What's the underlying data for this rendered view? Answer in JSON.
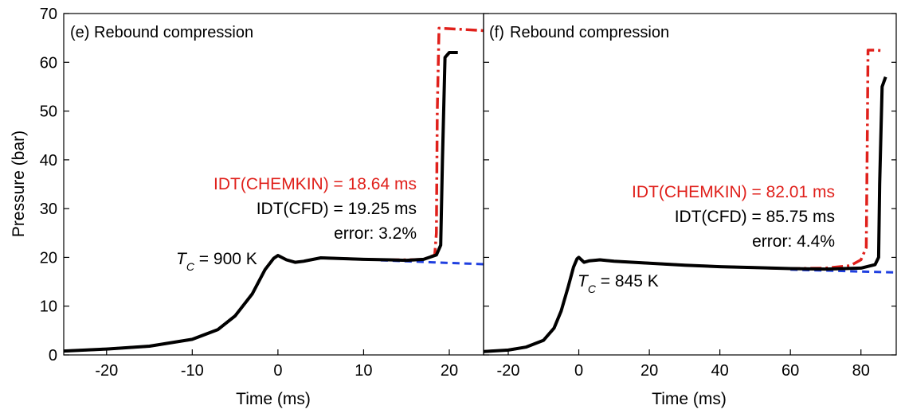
{
  "chart_data": [
    {
      "type": "line",
      "panel_label": "(e)",
      "title": "Rebound compression",
      "xlabel": "Time (ms)",
      "ylabel": "Pressure (bar)",
      "xlim": [
        -25,
        24
      ],
      "ylim": [
        0,
        70
      ],
      "xticks": [
        -20,
        -10,
        0,
        10,
        20
      ],
      "yticks": [
        0,
        10,
        20,
        30,
        40,
        50,
        60,
        70
      ],
      "grid": false,
      "series": [
        {
          "style": "solid",
          "color": "#000000",
          "x": [
            -25,
            -20,
            -15,
            -10,
            -7,
            -5,
            -3,
            -1.5,
            -0.5,
            0,
            1,
            2,
            3,
            5,
            7,
            10,
            13,
            15,
            17,
            18.5,
            19,
            19.2,
            19.5,
            20,
            21
          ],
          "y": [
            0.8,
            1.2,
            1.8,
            3.2,
            5.2,
            8,
            12.5,
            17.5,
            19.8,
            20.4,
            19.5,
            19,
            19.2,
            19.9,
            19.8,
            19.6,
            19.5,
            19.4,
            19.6,
            20.5,
            22.5,
            40,
            61,
            62,
            62
          ]
        },
        {
          "style": "dash-dot",
          "color": "#e0201b",
          "x": [
            -25,
            -20,
            -15,
            -10,
            -7,
            -5,
            -3,
            -1.5,
            -0.5,
            0,
            1,
            2,
            3,
            5,
            7,
            10,
            13,
            15,
            17,
            18.3,
            18.5,
            18.6,
            18.8,
            21,
            24
          ],
          "y": [
            0.8,
            1.2,
            1.8,
            3.2,
            5.2,
            8,
            12.5,
            17.5,
            19.8,
            20.4,
            19.5,
            19,
            19.2,
            19.9,
            19.8,
            19.6,
            19.5,
            19.5,
            19.6,
            20.5,
            25,
            50,
            67,
            66.8,
            66.5
          ]
        },
        {
          "style": "dashed",
          "color": "#1f3fe0",
          "x": [
            12,
            15,
            18,
            21,
            24
          ],
          "y": [
            19.4,
            19.2,
            19,
            18.8,
            18.6
          ]
        }
      ],
      "annotations": {
        "idt_chemkin": "IDT(CHEMKIN) = 18.64 ms",
        "idt_cfd": "IDT(CFD) = 19.25 ms",
        "error": "error: 3.2%",
        "tc_symbol": "T",
        "tc_subscript": "C",
        "tc_value": " = 900 K"
      },
      "colors": {
        "chemkin": "#e0201b",
        "cfd": "#000000"
      }
    },
    {
      "type": "line",
      "panel_label": "(f)",
      "title": "Rebound compression",
      "xlabel": "Time (ms)",
      "ylabel": "",
      "xlim": [
        -27,
        90
      ],
      "ylim": [
        0,
        70
      ],
      "xticks": [
        -20,
        0,
        20,
        40,
        60,
        80
      ],
      "yticks": [
        0,
        10,
        20,
        30,
        40,
        50,
        60,
        70
      ],
      "grid": false,
      "series": [
        {
          "style": "solid",
          "color": "#000000",
          "x": [
            -27,
            -20,
            -15,
            -10,
            -7,
            -5,
            -3,
            -1.5,
            -0.5,
            0,
            1.5,
            3,
            6,
            10,
            20,
            30,
            40,
            50,
            60,
            70,
            80,
            84,
            85,
            85.3,
            86,
            87
          ],
          "y": [
            0.7,
            1,
            1.6,
            3,
            5.5,
            9,
            14,
            18,
            19.7,
            20,
            19,
            19.3,
            19.5,
            19.2,
            18.8,
            18.4,
            18.1,
            17.9,
            17.7,
            17.6,
            17.8,
            18.5,
            20,
            35,
            55,
            57
          ]
        },
        {
          "style": "dash-dot",
          "color": "#e0201b",
          "x": [
            -27,
            -20,
            -15,
            -10,
            -7,
            -5,
            -3,
            -1.5,
            -0.5,
            0,
            1.5,
            3,
            6,
            10,
            20,
            30,
            40,
            50,
            60,
            70,
            77,
            80,
            81.5,
            81.8,
            82,
            84,
            86
          ],
          "y": [
            0.7,
            1,
            1.6,
            3,
            5.5,
            9,
            14,
            18,
            19.7,
            20,
            19,
            19.3,
            19.5,
            19.2,
            18.8,
            18.4,
            18.1,
            17.9,
            17.7,
            17.8,
            18.3,
            19.5,
            22,
            45,
            62.5,
            62.5,
            62.4
          ]
        },
        {
          "style": "dashed",
          "color": "#1f3fe0",
          "x": [
            60,
            70,
            80,
            90
          ],
          "y": [
            17.5,
            17.3,
            17.1,
            16.9
          ]
        }
      ],
      "annotations": {
        "idt_chemkin": "IDT(CHEMKIN) = 82.01 ms",
        "idt_cfd": "IDT(CFD) = 85.75 ms",
        "error": "error: 4.4%",
        "tc_symbol": "T",
        "tc_subscript": "C",
        "tc_value": " = 845 K"
      },
      "colors": {
        "chemkin": "#e0201b",
        "cfd": "#000000"
      }
    }
  ]
}
